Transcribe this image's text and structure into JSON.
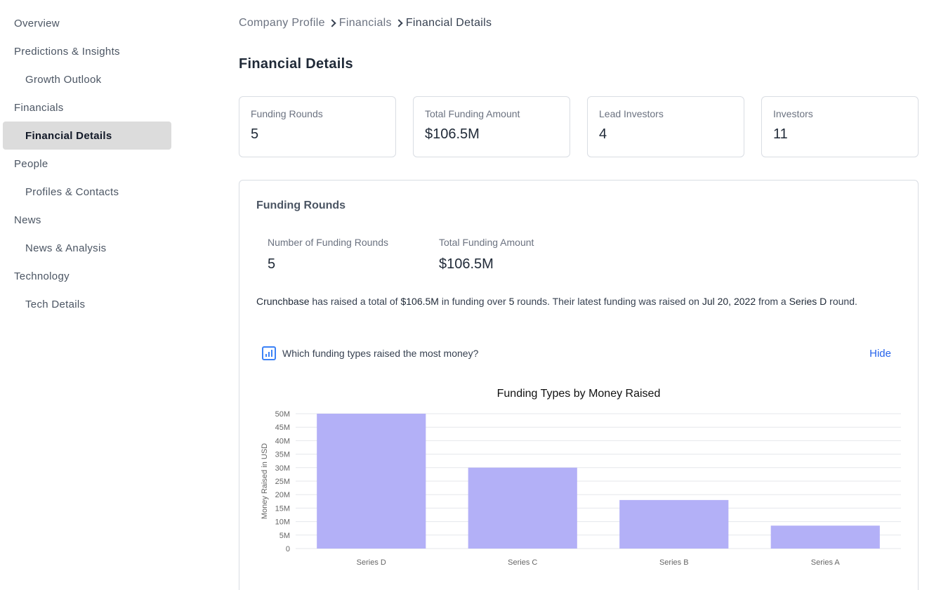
{
  "sidebar": {
    "items": [
      {
        "label": "Overview",
        "level": "top"
      },
      {
        "label": "Predictions & Insights",
        "level": "top"
      },
      {
        "label": "Growth Outlook",
        "level": "sub"
      },
      {
        "label": "Financials",
        "level": "top"
      },
      {
        "label": "Financial Details",
        "level": "sub",
        "active": true
      },
      {
        "label": "People",
        "level": "top"
      },
      {
        "label": "Profiles & Contacts",
        "level": "sub"
      },
      {
        "label": "News",
        "level": "top"
      },
      {
        "label": "News & Analysis",
        "level": "sub"
      },
      {
        "label": "Technology",
        "level": "top"
      },
      {
        "label": "Tech Details",
        "level": "sub"
      }
    ]
  },
  "breadcrumb": {
    "items": [
      "Company Profile",
      "Financials",
      "Financial Details"
    ]
  },
  "page": {
    "title": "Financial Details"
  },
  "stats": [
    {
      "label": "Funding Rounds",
      "value": "5"
    },
    {
      "label": "Total Funding Amount",
      "value": "$106.5M"
    },
    {
      "label": "Lead Investors",
      "value": "4"
    },
    {
      "label": "Investors",
      "value": "11"
    }
  ],
  "funding_rounds": {
    "title": "Funding Rounds",
    "num_label": "Number of Funding Rounds",
    "num_value": "5",
    "total_label": "Total Funding Amount",
    "total_value": "$106.5M",
    "summary": {
      "company": "Crunchbase",
      "t1": " has raised a total of ",
      "amount": "$106.5M",
      "t2": " in funding over ",
      "rounds": "5",
      "t3": " rounds. Their latest funding was raised on ",
      "date": "Jul 20, 2022",
      "t4": " from a ",
      "round_type": "Series D",
      "t5": " round."
    },
    "question": "Which funding types raised the most money?",
    "hide_label": "Hide",
    "icon": "bar-chart-icon"
  },
  "colors": {
    "bar": "#b3b0f7",
    "grid": "#e5e7eb",
    "accent": "#2563eb"
  },
  "chart_data": {
    "type": "bar",
    "title": "Funding Types by Money Raised",
    "ylabel": "Money Raised in USD",
    "xlabel": "",
    "categories": [
      "Series D",
      "Series C",
      "Series B",
      "Series A"
    ],
    "values": [
      50000000,
      30000000,
      18000000,
      8500000
    ],
    "ylim": [
      0,
      50000000
    ],
    "yticks": [
      0,
      5000000,
      10000000,
      15000000,
      20000000,
      25000000,
      30000000,
      35000000,
      40000000,
      45000000,
      50000000
    ],
    "ytick_labels": [
      "0",
      "5M",
      "10M",
      "15M",
      "20M",
      "25M",
      "30M",
      "35M",
      "40M",
      "45M",
      "50M"
    ],
    "grid": true,
    "legend": "none"
  }
}
